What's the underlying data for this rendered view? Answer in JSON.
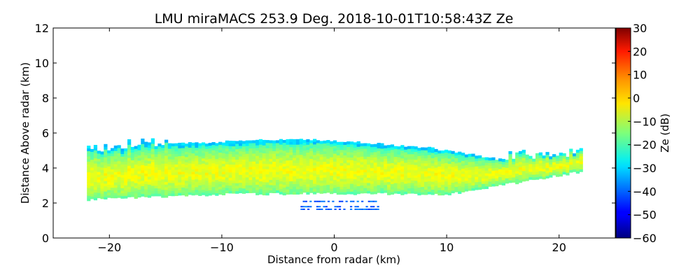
{
  "chart_data": {
    "type": "heatmap",
    "title": "LMU miraMACS 253.9 Deg. 2018-10-01T10:58:43Z  Ze",
    "xlabel": "Distance from radar (km)",
    "ylabel": "Distance Above radar  (km)",
    "xlim": [
      -25,
      25
    ],
    "ylim": [
      0,
      12
    ],
    "x_ticks": [
      -20,
      -10,
      0,
      10,
      20
    ],
    "x_tick_labels": [
      "−20",
      "−10",
      "0",
      "10",
      "20"
    ],
    "y_ticks": [
      0,
      2,
      4,
      6,
      8,
      10,
      12
    ],
    "y_tick_labels": [
      "0",
      "2",
      "4",
      "6",
      "8",
      "10",
      "12"
    ],
    "colorbar": {
      "label": "Ze (dB)",
      "range": [
        -60,
        30
      ],
      "ticks": [
        -60,
        -50,
        -40,
        -30,
        -20,
        -10,
        0,
        10,
        20,
        30
      ],
      "tick_labels": [
        "−60",
        "−50",
        "−40",
        "−30",
        "−20",
        "−10",
        "0",
        "10",
        "20",
        "30"
      ],
      "colormap": "jet"
    },
    "features": [
      {
        "name": "main cloud layer",
        "x_range_km": [
          -22,
          22
        ],
        "base_km": {
          "x": [
            -22,
            -10,
            0,
            10,
            22
          ],
          "y": [
            2.2,
            2.5,
            2.55,
            2.5,
            3.8
          ]
        },
        "top_km": {
          "x": [
            -22,
            -15,
            -5,
            0,
            8,
            15,
            22
          ],
          "y": [
            4.7,
            5.3,
            5.55,
            5.5,
            5.1,
            4.4,
            4.6
          ]
        },
        "core_ze_db": -5,
        "edge_ze_db": -25
      },
      {
        "name": "lower echo patch",
        "x_range_km": [
          -3,
          4
        ],
        "height_km": [
          1.4,
          2.2
        ],
        "ze_db": -40
      }
    ]
  }
}
